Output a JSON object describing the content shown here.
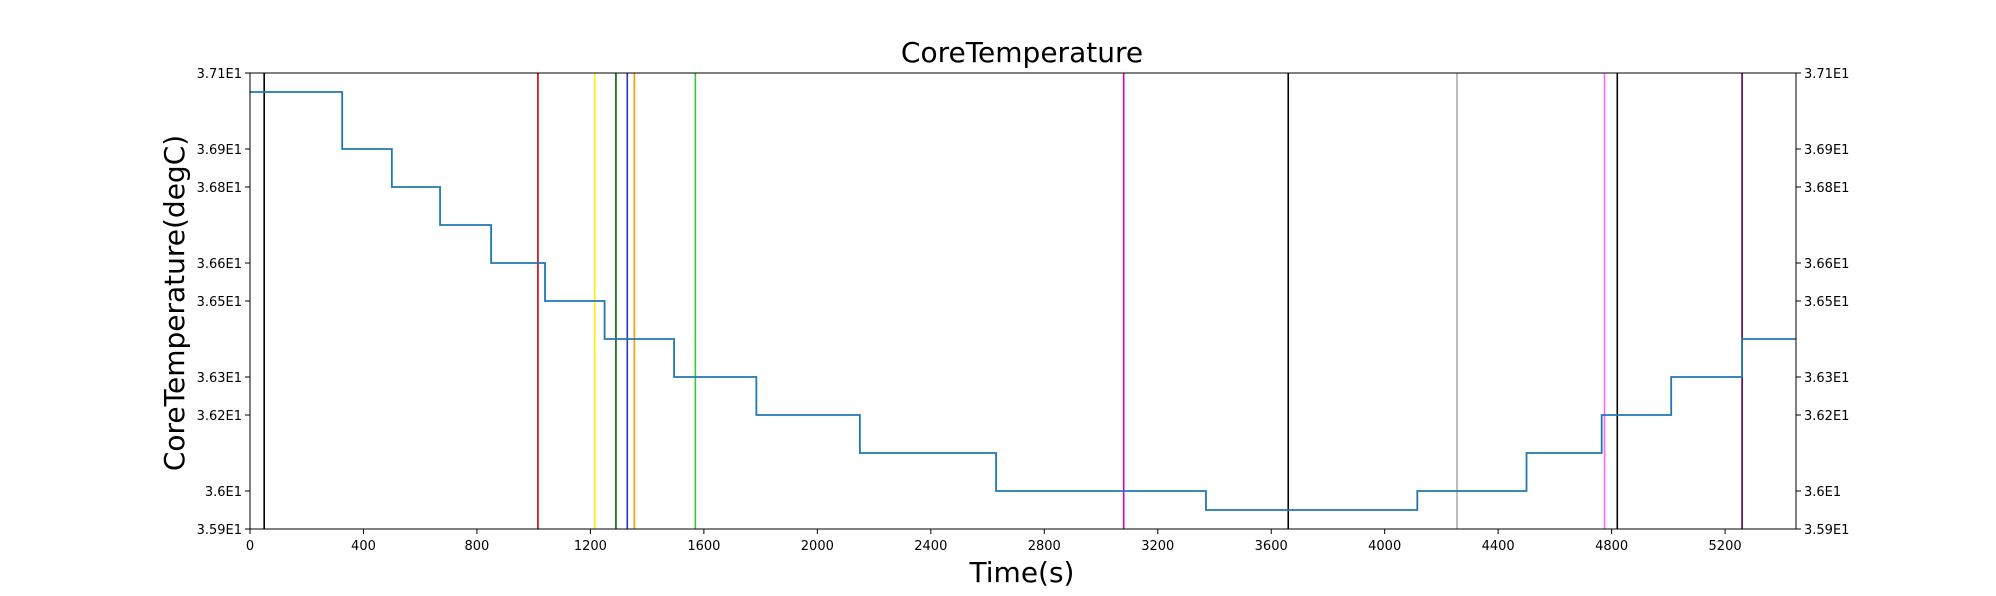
{
  "chart_data": {
    "type": "line",
    "title": "CoreTemperature",
    "xlabel": "Time(s)",
    "ylabel": "CoreTemperature(degC)",
    "xlim": [
      0,
      5450
    ],
    "ylim": [
      35.9,
      37.1
    ],
    "x_ticks": [
      0,
      400,
      800,
      1200,
      1600,
      2000,
      2400,
      2800,
      3200,
      3600,
      4000,
      4400,
      4800,
      5200
    ],
    "y_ticks": [
      {
        "value": 35.9,
        "label": "3.59E1"
      },
      {
        "value": 36.0,
        "label": "3.6E1"
      },
      {
        "value": 36.2,
        "label": "3.62E1"
      },
      {
        "value": 36.3,
        "label": "3.63E1"
      },
      {
        "value": 36.5,
        "label": "3.65E1"
      },
      {
        "value": 36.6,
        "label": "3.66E1"
      },
      {
        "value": 36.8,
        "label": "3.68E1"
      },
      {
        "value": 36.9,
        "label": "3.69E1"
      },
      {
        "value": 37.1,
        "label": "3.71E1"
      }
    ],
    "grid": false,
    "series": [
      {
        "color": "#1f77b4",
        "step": true,
        "x": [
          0,
          325,
          500,
          670,
          850,
          1040,
          1250,
          1495,
          1785,
          2150,
          2630,
          3370,
          4115,
          4500,
          4765,
          5010,
          5260,
          5450
        ],
        "y": [
          37.05,
          36.9,
          36.8,
          36.7,
          36.6,
          36.5,
          36.4,
          36.3,
          36.2,
          36.1,
          36.0,
          35.95,
          36.0,
          36.1,
          36.2,
          36.3,
          36.4,
          36.4
        ]
      }
    ],
    "vertical_lines": [
      {
        "x": 50,
        "color": "#000000"
      },
      {
        "x": 1015,
        "color": "#cc0000"
      },
      {
        "x": 1215,
        "color": "#ffee00"
      },
      {
        "x": 1290,
        "color": "#006400"
      },
      {
        "x": 1330,
        "color": "#3333cc"
      },
      {
        "x": 1355,
        "color": "#ff9900"
      },
      {
        "x": 1570,
        "color": "#33cc33"
      },
      {
        "x": 3080,
        "color": "#cc00cc"
      },
      {
        "x": 3660,
        "color": "#000000"
      },
      {
        "x": 4255,
        "color": "#aaaaaa"
      },
      {
        "x": 4775,
        "color": "#ff66ff"
      },
      {
        "x": 4820,
        "color": "#000000"
      },
      {
        "x": 5260,
        "color": "#550044"
      }
    ]
  }
}
